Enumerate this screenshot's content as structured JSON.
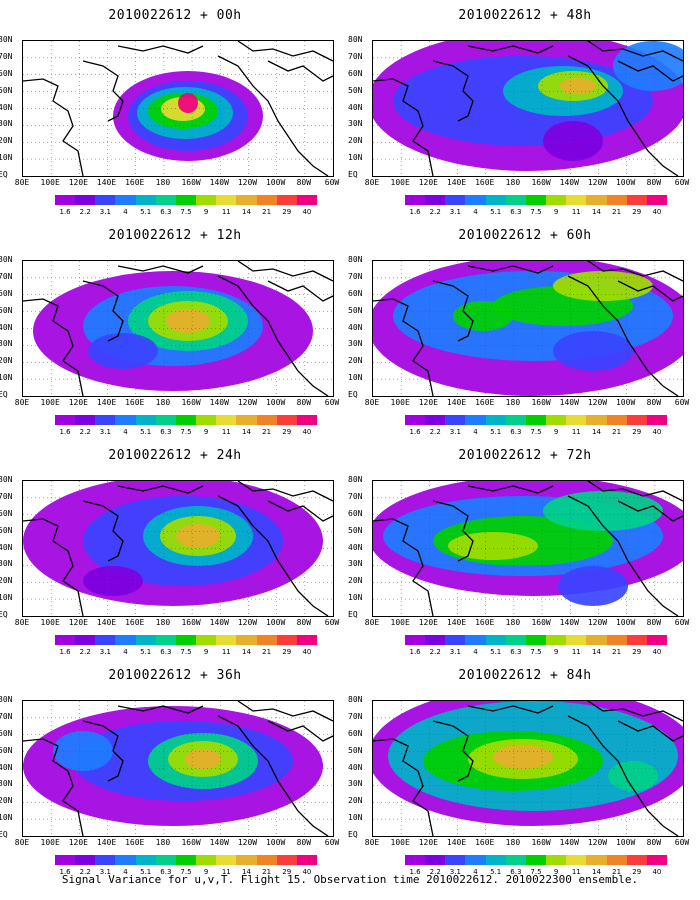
{
  "panels": [
    {
      "title": "2010022612 + 00h"
    },
    {
      "title": "2010022612 + 48h"
    },
    {
      "title": "2010022612 + 12h"
    },
    {
      "title": "2010022612 + 60h"
    },
    {
      "title": "2010022612 + 24h"
    },
    {
      "title": "2010022612 + 72h"
    },
    {
      "title": "2010022612 + 36h"
    },
    {
      "title": "2010022612 + 84h"
    }
  ],
  "lat_labels": [
    "80N",
    "70N",
    "60N",
    "50N",
    "40N",
    "30N",
    "20N",
    "10N",
    "EQ"
  ],
  "lon_labels": [
    "80E",
    "100E",
    "120E",
    "140E",
    "160E",
    "180",
    "160W",
    "140W",
    "120W",
    "100W",
    "80W",
    "60W"
  ],
  "colorbar": {
    "labels": [
      "1.6",
      "2.2",
      "3.1",
      "4",
      "5.1",
      "6.3",
      "7.5",
      "9",
      "11",
      "14",
      "21",
      "29",
      "40"
    ],
    "colors": [
      "#a100e0",
      "#7d00e0",
      "#3a44ff",
      "#1e7dff",
      "#00b4c8",
      "#00d08a",
      "#00d000",
      "#a0dc00",
      "#e6dc32",
      "#e6af2d",
      "#f08228",
      "#fa3c3c",
      "#f00082"
    ]
  },
  "footer": "Signal Variance for u,v,T. Flight 15. Observation time 2010022612. 2010022300 ensemble."
}
